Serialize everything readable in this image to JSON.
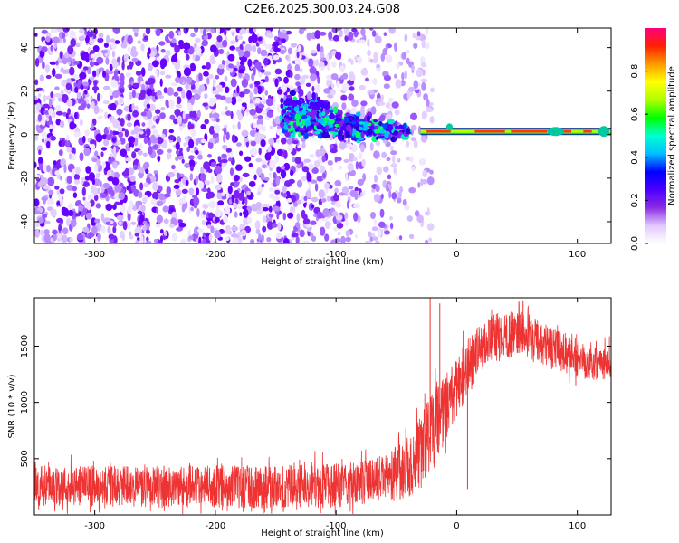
{
  "figure_title": "C2E6.2025.300.03.24.G08",
  "chart_data": [
    {
      "type": "heatmap",
      "title": "C2E6.2025.300.03.24.G08",
      "xlabel": "Height of straight line (km)",
      "ylabel": "Frequency (Hz)",
      "xlim": [
        -350,
        128
      ],
      "ylim": [
        -50,
        49
      ],
      "xticks": [
        -300,
        -200,
        -100,
        0,
        100
      ],
      "xtick_labels": [
        "-300",
        "-200",
        "-100",
        "0",
        "100"
      ],
      "yticks": [
        -40,
        -20,
        0,
        20,
        40
      ],
      "ytick_labels": [
        "-40",
        "-20",
        "0",
        "20",
        "40"
      ],
      "colorbar": {
        "label": "Normalized spectral amplitude",
        "range": [
          0.0,
          1.0
        ],
        "ticks": [
          0.0,
          0.2,
          0.4,
          0.6,
          0.8
        ],
        "tick_labels": [
          "0.0",
          "0.2",
          "0.4",
          "0.6",
          "0.8"
        ],
        "colormap": "rainbow",
        "stops": [
          "#ffffff",
          "#e0c8ff",
          "#8a2be2",
          "#4b00ff",
          "#0000ff",
          "#00bfff",
          "#00ffd0",
          "#00ff00",
          "#b0ff00",
          "#ffff00",
          "#ff9900",
          "#ff2000",
          "#ff0080"
        ]
      },
      "description_points": {
        "noise_region_x": [
          -350,
          -60
        ],
        "band_region_x": [
          -145,
          -40
        ],
        "band_freq_hz": [
          -10,
          17
        ],
        "line_region_x": [
          -30,
          128
        ],
        "line_freq_hz": 1.5
      }
    },
    {
      "type": "line",
      "xlabel": "Height of straight line (km)",
      "ylabel": "SNR (10 * v/v)",
      "xlim": [
        -350,
        128
      ],
      "ylim": [
        0,
        1930
      ],
      "xticks": [
        -300,
        -200,
        -100,
        0,
        100
      ],
      "xtick_labels": [
        "-300",
        "-200",
        "-100",
        "0",
        "100"
      ],
      "yticks": [
        500,
        1000,
        1500
      ],
      "ytick_labels": [
        "500",
        "1000",
        "1500"
      ],
      "color": "#ee3333",
      "trend": {
        "x": [
          -350,
          -300,
          -250,
          -200,
          -150,
          -100,
          -80,
          -60,
          -40,
          -30,
          -20,
          -10,
          0,
          10,
          20,
          30,
          40,
          50,
          60,
          70,
          80,
          90,
          100,
          110,
          120,
          128
        ],
        "y": [
          260,
          255,
          250,
          255,
          250,
          260,
          290,
          330,
          420,
          560,
          760,
          950,
          1120,
          1330,
          1500,
          1570,
          1600,
          1610,
          1590,
          1520,
          1470,
          1440,
          1400,
          1370,
          1360,
          1350
        ]
      },
      "noise_amplitude": [
        {
          "x": -350,
          "amp": 180
        },
        {
          "x": -60,
          "amp": 200
        },
        {
          "x": -20,
          "amp": 350
        },
        {
          "x": 20,
          "amp": 220
        },
        {
          "x": 128,
          "amp": 160
        }
      ],
      "spikes": [
        {
          "x": -22,
          "y": 1930
        },
        {
          "x": -14,
          "y": 1880
        },
        {
          "x": 9,
          "y": 230
        },
        {
          "x": 55,
          "y": 1900
        }
      ]
    }
  ]
}
